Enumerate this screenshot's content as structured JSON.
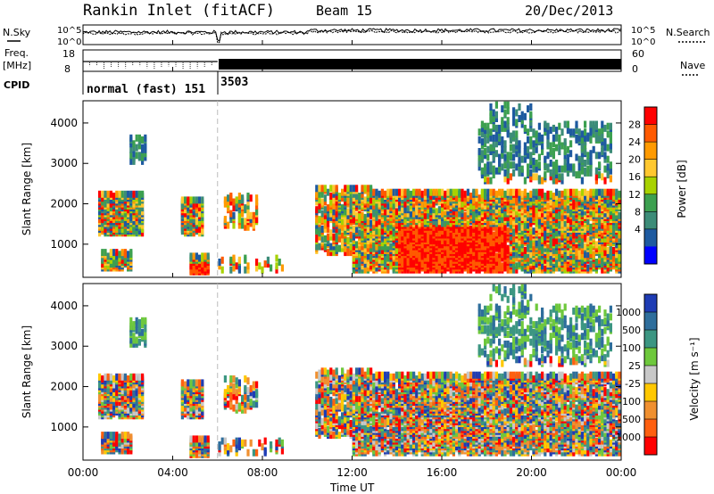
{
  "header": {
    "station": "Rankin Inlet (fitACF)",
    "beam": "Beam 15",
    "date": "20/Dec/2013"
  },
  "left_labels": {
    "nsky": "N.Sky",
    "freq_line1": "Freq.",
    "freq_line2": "[MHz]",
    "cpid": "CPID"
  },
  "right_labels": {
    "nsearch": "N.Search",
    "nave": "Nave"
  },
  "cpid_segments": [
    {
      "label": "normal (fast) 151",
      "start_hour": 0,
      "end_hour": 6
    },
    {
      "label": "3503",
      "start_hour": 6,
      "end_hour": 24
    }
  ],
  "chart_data": [
    {
      "type": "line",
      "name": "noise-panel",
      "x_range_hours": [
        0,
        24
      ],
      "left_axis": {
        "label": "N.Sky",
        "tick_labels": [
          "10^5",
          "10^0"
        ]
      },
      "right_axis": {
        "label": "N.Search",
        "tick_labels": [
          "10^5",
          "10^0"
        ]
      }
    },
    {
      "type": "line",
      "name": "frequency-panel",
      "x_range_hours": [
        0,
        24
      ],
      "left_axis": {
        "label": "Freq. [MHz]",
        "range": [
          8,
          18
        ],
        "tick_labels": [
          "18",
          "8"
        ]
      },
      "right_axis": {
        "label": "Nave",
        "range": [
          0,
          60
        ],
        "tick_labels": [
          "60",
          "0"
        ]
      }
    },
    {
      "type": "heatmap",
      "name": "power-panel",
      "ylabel": "Slant Range [km]",
      "ylim": [
        180,
        4550
      ],
      "y_ticks": [
        1000,
        2000,
        3000,
        4000
      ],
      "x_range_hours": [
        0,
        24
      ],
      "colorbar": {
        "label": "Power [dB]",
        "tick_labels": [
          "28",
          "24",
          "20",
          "16",
          "12",
          "8",
          "4"
        ],
        "colors": [
          "#ff0000",
          "#ff5a00",
          "#ff9a00",
          "#ffc830",
          "#a8d200",
          "#3ca050",
          "#3c8c78",
          "#1e5aa0",
          "#0000ff"
        ]
      }
    },
    {
      "type": "heatmap",
      "name": "velocity-panel",
      "ylabel": "Slant Range [km]",
      "ylim": [
        180,
        4550
      ],
      "y_ticks": [
        1000,
        2000,
        3000,
        4000
      ],
      "x_range_hours": [
        0,
        24
      ],
      "colorbar": {
        "label": "Velocity [m s⁻¹]",
        "tick_labels": [
          "1000",
          "500",
          "100",
          "25",
          "-25",
          "-100",
          "-500",
          "-1000"
        ],
        "colors": [
          "#1e3cb4",
          "#2e6e9c",
          "#3c9682",
          "#6ec83c",
          "#c8c8c8",
          "#ffc800",
          "#f09030",
          "#ff6010",
          "#ff0000"
        ]
      }
    }
  ],
  "x_axis": {
    "label": "Time UT",
    "tick_labels": [
      "00:00",
      "04:00",
      "08:00",
      "12:00",
      "16:00",
      "20:00",
      "00:00"
    ]
  }
}
